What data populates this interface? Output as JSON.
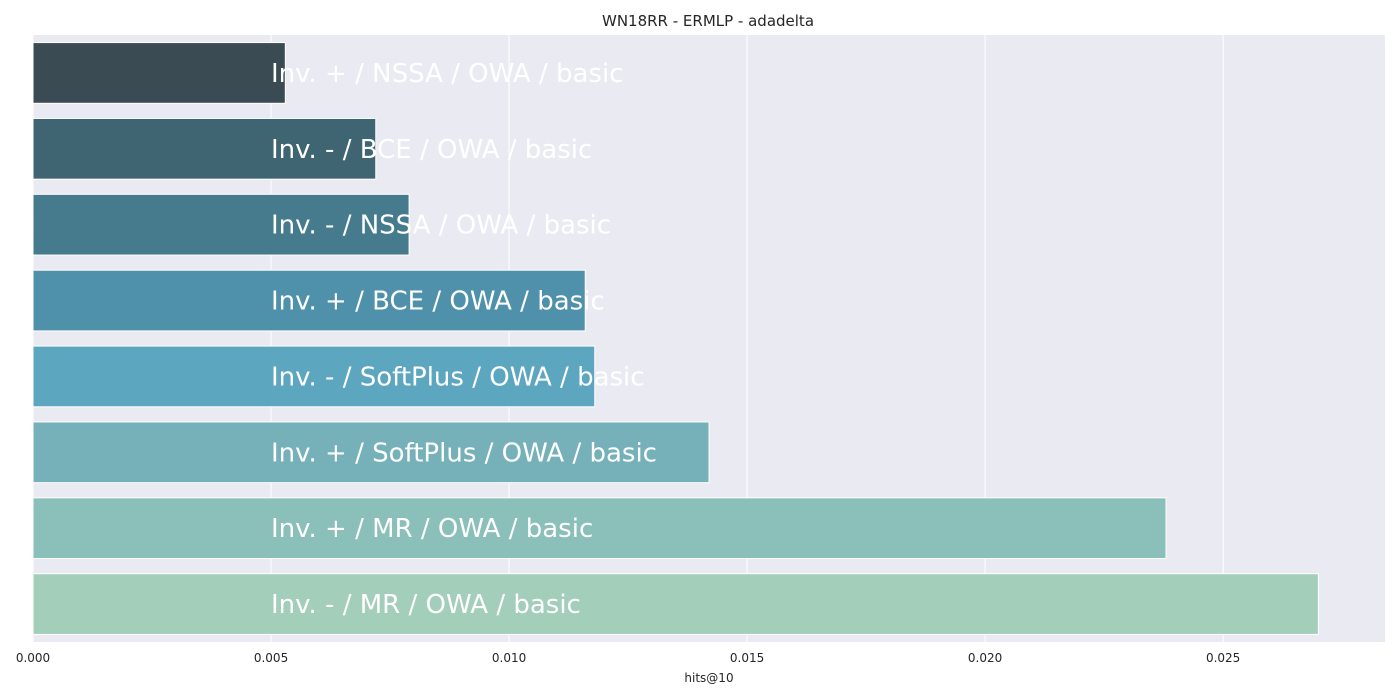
{
  "chart_data": {
    "type": "bar",
    "orientation": "horizontal",
    "title": "WN18RR - ERMLP - adadelta",
    "xlabel": "hits@10",
    "ylabel": "",
    "xlim": [
      0.0,
      0.0284
    ],
    "xticks": [
      "0.000",
      "0.005",
      "0.010",
      "0.015",
      "0.020",
      "0.025"
    ],
    "grid": true,
    "categories": [
      "Inv. + / NSSA / OWA / basic",
      "Inv. - / BCE / OWA / basic",
      "Inv. - / NSSA / OWA / basic",
      "Inv. + / BCE / OWA / basic",
      "Inv. - / SoftPlus / OWA / basic",
      "Inv. + / SoftPlus / OWA / basic",
      "Inv. + / MR / OWA / basic",
      "Inv. - / MR / OWA / basic"
    ],
    "values": [
      0.0053,
      0.0072,
      0.0079,
      0.0116,
      0.0118,
      0.0142,
      0.0238,
      0.027
    ],
    "colors": [
      "#3a4b53",
      "#3f6472",
      "#457b8c",
      "#4f90aa",
      "#5da6bf",
      "#76b1ba",
      "#8bbfb9",
      "#a3ceba"
    ],
    "background": "#eaeaf2",
    "label_color": "#ffffff"
  }
}
